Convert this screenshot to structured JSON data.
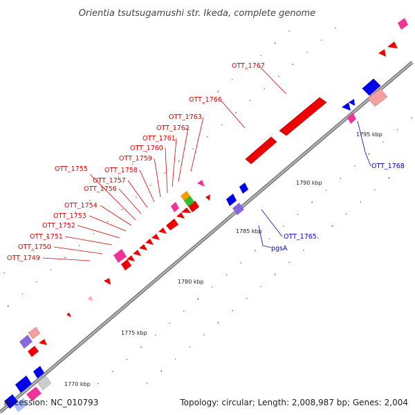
{
  "title": "Orientia tsutsugamushi str. Ikeda, complete genome",
  "footer": {
    "accession": "Accession: NC_010793",
    "summary": "Topology: circular; Length: 2,008,987 bp; Genes: 2,004"
  },
  "colors": {
    "backbone": "#999999",
    "forward_label": "#dd0000",
    "reverse_label": "#0000cc",
    "tick": "#118811"
  },
  "kbp_marks": [
    {
      "label": "1770 kbp"
    },
    {
      "label": "1775 kbp"
    },
    {
      "label": "1780 kbp"
    },
    {
      "label": "1785 kbp"
    },
    {
      "label": "1790 kbp"
    },
    {
      "label": "1795 kbp"
    }
  ],
  "gene_labels": [
    {
      "text": "OTT_1749",
      "strand": "forward"
    },
    {
      "text": "OTT_1750",
      "strand": "forward"
    },
    {
      "text": "OTT_1751",
      "strand": "forward"
    },
    {
      "text": "OTT_1752",
      "strand": "forward"
    },
    {
      "text": "OTT_1753",
      "strand": "forward"
    },
    {
      "text": "OTT_1754",
      "strand": "forward"
    },
    {
      "text": "OTT_1755",
      "strand": "forward"
    },
    {
      "text": "OTT_1756",
      "strand": "forward"
    },
    {
      "text": "OTT_1757",
      "strand": "forward"
    },
    {
      "text": "OTT_1758",
      "strand": "forward"
    },
    {
      "text": "OTT_1759",
      "strand": "forward"
    },
    {
      "text": "OTT_1760",
      "strand": "forward"
    },
    {
      "text": "OTT_1761",
      "strand": "forward"
    },
    {
      "text": "OTT_1762",
      "strand": "forward"
    },
    {
      "text": "OTT_1763",
      "strand": "forward"
    },
    {
      "text": "OTT_1766",
      "strand": "forward"
    },
    {
      "text": "OTT_1767",
      "strand": "forward"
    },
    {
      "text": "OTT_1768",
      "strand": "reverse"
    },
    {
      "text": "OTT_1765",
      "strand": "reverse"
    },
    {
      "text": "pgsA",
      "strand": "reverse"
    }
  ]
}
